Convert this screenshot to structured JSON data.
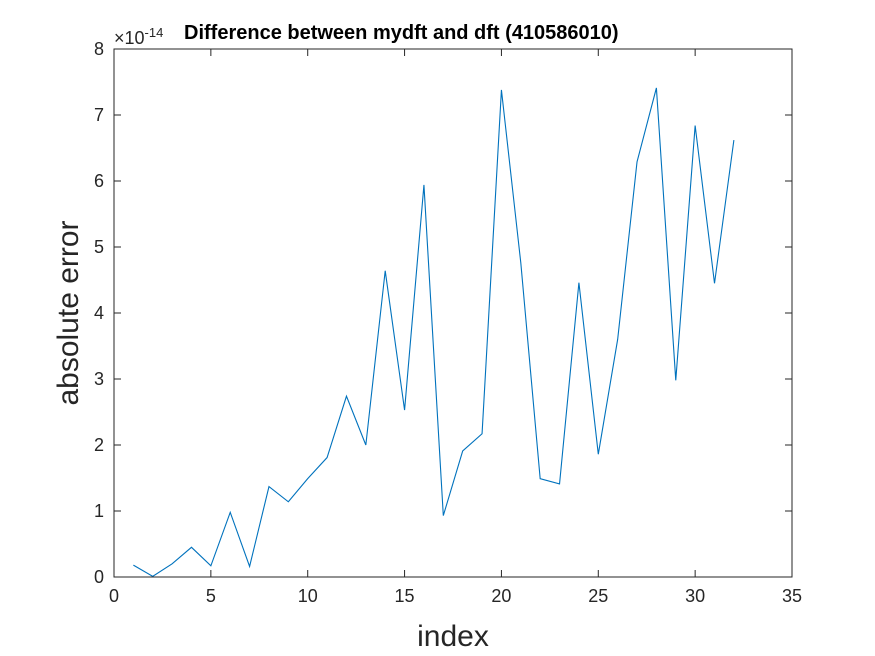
{
  "chart_data": {
    "type": "line",
    "title": "Difference between mydft and dft (410586010)",
    "xlabel": "index",
    "ylabel": "absolute error",
    "exponent_prefix": "×10",
    "exponent_value": "-14",
    "xlim": [
      0,
      35
    ],
    "ylim": [
      0,
      8
    ],
    "xticks": [
      0,
      5,
      10,
      15,
      20,
      25,
      30,
      35
    ],
    "yticks": [
      0,
      1,
      2,
      3,
      4,
      5,
      6,
      7,
      8
    ],
    "grid": false,
    "legend": "none",
    "line_color": "#0072BD",
    "axis_color": "#262626",
    "series": [
      {
        "x": [
          1,
          2,
          3,
          4,
          5,
          6,
          7,
          8,
          9,
          10,
          11,
          12,
          13,
          14,
          15,
          16,
          17,
          18,
          19,
          20,
          21,
          22,
          23,
          24,
          25,
          26,
          27,
          28,
          29,
          30,
          31,
          32
        ],
        "y": [
          0.18,
          0.01,
          0.2,
          0.45,
          0.17,
          0.98,
          0.16,
          1.37,
          1.14,
          1.49,
          1.81,
          2.74,
          2.0,
          4.64,
          2.53,
          5.94,
          0.93,
          1.91,
          2.17,
          7.38,
          4.76,
          1.49,
          1.41,
          4.46,
          1.86,
          3.6,
          6.29,
          7.41,
          2.98,
          6.84,
          4.45,
          6.62
        ]
      }
    ]
  }
}
